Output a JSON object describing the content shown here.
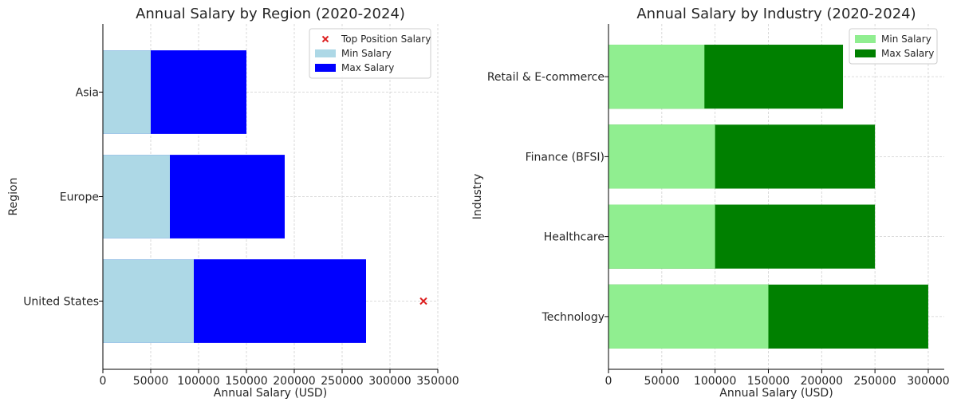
{
  "chart_data": [
    {
      "type": "bar",
      "orientation": "horizontal",
      "title": "Annual Salary by Region (2020-2024)",
      "xlabel": "Annual Salary (USD)",
      "ylabel": "Region",
      "categories": [
        "United States",
        "Europe",
        "Asia"
      ],
      "xlim": [
        0,
        350000
      ],
      "xticks": [
        "0",
        "50000",
        "100000",
        "150000",
        "200000",
        "250000",
        "300000",
        "350000"
      ],
      "grid": true,
      "legend_position": "top-right",
      "series": [
        {
          "name": "Max Salary",
          "color": "#0000ff",
          "values": [
            275000,
            190000,
            150000
          ]
        },
        {
          "name": "Min Salary",
          "color": "#add8e6",
          "values": [
            95000,
            70000,
            50000
          ]
        }
      ],
      "markers": [
        {
          "name": "Top Position Salary",
          "color": "#dd2222",
          "category": "United States",
          "value": 335000
        }
      ],
      "legend": [
        "Top Position Salary",
        "Min Salary",
        "Max Salary"
      ]
    },
    {
      "type": "bar",
      "orientation": "horizontal",
      "title": "Annual Salary by Industry (2020-2024)",
      "xlabel": "Annual Salary (USD)",
      "ylabel": "Industry",
      "categories": [
        "Technology",
        "Healthcare",
        "Finance (BFSI)",
        "Retail & E-commerce"
      ],
      "xlim": [
        0,
        315000
      ],
      "xticks": [
        "0",
        "50000",
        "100000",
        "150000",
        "200000",
        "250000",
        "300000"
      ],
      "grid": true,
      "legend_position": "top-right",
      "series": [
        {
          "name": "Max Salary",
          "color": "#008000",
          "values": [
            300000,
            250000,
            250000,
            220000
          ]
        },
        {
          "name": "Min Salary",
          "color": "#90ee90",
          "values": [
            150000,
            100000,
            100000,
            90000
          ]
        }
      ],
      "legend": [
        "Min Salary",
        "Max Salary"
      ]
    }
  ]
}
